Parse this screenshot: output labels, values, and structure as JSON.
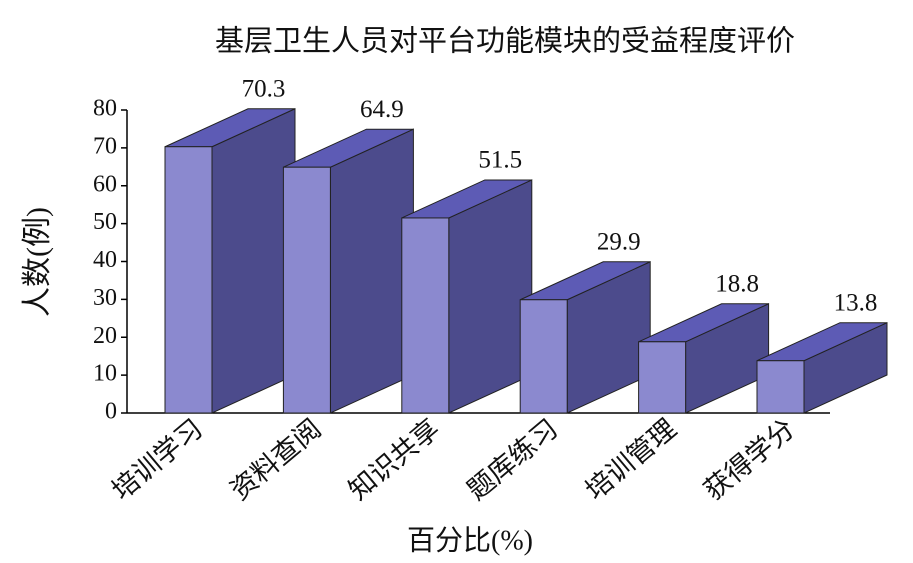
{
  "chart_data": {
    "type": "bar3d",
    "title": "基层卫生人员对平台功能模块的受益程度评价",
    "xlabel": "百分比(%)",
    "ylabel": "人数(例)",
    "categories": [
      "培训学习",
      "资料查阅",
      "知识共享",
      "题库练习",
      "培训管理",
      "获得学分"
    ],
    "values": [
      70.3,
      64.9,
      51.5,
      29.9,
      18.8,
      13.8
    ],
    "colors": {
      "front": "#8b89cf",
      "side": "#4c4b8c",
      "top": "#5d5bb5"
    },
    "ylim": [
      0,
      80
    ],
    "yticks": [
      0,
      10,
      20,
      30,
      40,
      50,
      60,
      70,
      80
    ]
  }
}
